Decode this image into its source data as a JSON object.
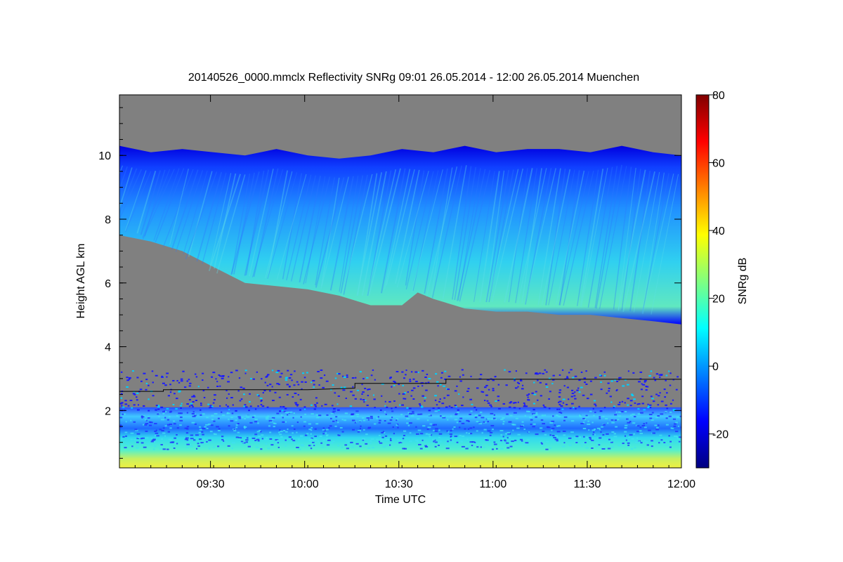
{
  "chart_data": {
    "type": "heatmap",
    "title": "20140526_0000.mmclx Reflectivity SNRg   09:01 26.05.2014 - 12:00 26.05.2014 Muenchen",
    "xlabel": "Time UTC",
    "ylabel": "Height AGL km",
    "colorbar_label": "SNRg dB",
    "x_range": [
      "09:01",
      "12:00"
    ],
    "y_range": [
      0.2,
      11.9
    ],
    "colorbar_range": [
      -30,
      80
    ],
    "x_ticks": [
      "09:30",
      "10:00",
      "10:30",
      "11:00",
      "11:30",
      "12:00"
    ],
    "y_ticks": [
      2,
      4,
      6,
      8,
      10
    ],
    "colorbar_ticks": [
      -20,
      0,
      20,
      40,
      60,
      80
    ],
    "background_color": "#808080",
    "colormap": [
      "#000080",
      "#0000ff",
      "#0080ff",
      "#00ffff",
      "#80ff80",
      "#ffff00",
      "#ff8000",
      "#ff0000",
      "#800000"
    ],
    "cloud": {
      "top_km": [
        [
          0,
          10.3
        ],
        [
          10,
          10.1
        ],
        [
          20,
          10.2
        ],
        [
          30,
          10.1
        ],
        [
          40,
          10.0
        ],
        [
          50,
          10.2
        ],
        [
          60,
          10.0
        ],
        [
          70,
          9.9
        ],
        [
          80,
          10.0
        ],
        [
          90,
          10.2
        ],
        [
          100,
          10.1
        ],
        [
          110,
          10.3
        ],
        [
          120,
          10.1
        ],
        [
          130,
          10.2
        ],
        [
          140,
          10.2
        ],
        [
          150,
          10.1
        ],
        [
          160,
          10.3
        ],
        [
          170,
          10.1
        ],
        [
          179,
          10.0
        ]
      ],
      "base_km": [
        [
          0,
          7.5
        ],
        [
          10,
          7.3
        ],
        [
          20,
          7.0
        ],
        [
          30,
          6.5
        ],
        [
          40,
          6.0
        ],
        [
          50,
          5.9
        ],
        [
          60,
          5.8
        ],
        [
          70,
          5.6
        ],
        [
          80,
          5.3
        ],
        [
          90,
          5.3
        ],
        [
          95,
          5.7
        ],
        [
          100,
          5.5
        ],
        [
          110,
          5.2
        ],
        [
          120,
          5.1
        ],
        [
          130,
          5.1
        ],
        [
          140,
          5.0
        ],
        [
          150,
          5.0
        ],
        [
          160,
          4.9
        ],
        [
          170,
          4.8
        ],
        [
          179,
          4.7
        ]
      ],
      "peak_snr_db": 25
    },
    "boundary_layer": {
      "top_km": 2.1,
      "surface_snr_db": 35
    },
    "black_line_km": [
      [
        0,
        2.6
      ],
      [
        14,
        2.6
      ],
      [
        14,
        2.65
      ],
      [
        60,
        2.65
      ],
      [
        75,
        2.7
      ],
      [
        75,
        2.85
      ],
      [
        104,
        2.85
      ],
      [
        104,
        2.98
      ],
      [
        179,
        2.98
      ]
    ]
  }
}
